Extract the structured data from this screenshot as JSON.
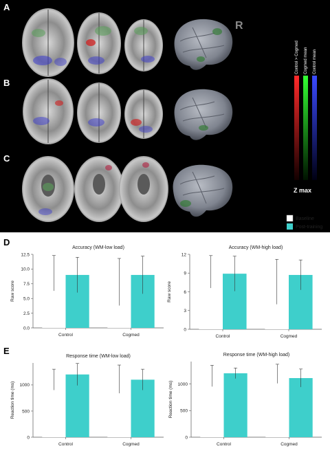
{
  "panel_labels": [
    "A",
    "B",
    "C",
    "D",
    "E"
  ],
  "brain_figure": {
    "orientation_label": "R",
    "colorbar_labels": [
      "Control > Cogmed",
      "Cogmed mean",
      "Control mean"
    ],
    "colorbar_colors": [
      "#d82020",
      "#28c828",
      "#2a3adc"
    ],
    "zmax_label": "Z max"
  },
  "legend": {
    "baseline": "Baseline",
    "post_training": "Post-training",
    "colors": {
      "baseline": "#ffffff",
      "post_training": "#3ecfcb"
    }
  },
  "chart_data": [
    {
      "type": "bar",
      "title": "Accuracy (WM-low load)",
      "ylabel": "Raw score",
      "categories": [
        "Control",
        "Cogmed"
      ],
      "ylim": [
        0,
        12.5
      ],
      "yticks": [
        "0.0",
        "2.5",
        "5.0",
        "7.5",
        "10.0",
        "12.5"
      ],
      "ytick_values": [
        0,
        2.5,
        5,
        7.5,
        10,
        12.5
      ],
      "series": [
        {
          "name": "Baseline",
          "values": [
            9.3,
            7.8
          ],
          "error": [
            3.0,
            4.0
          ]
        },
        {
          "name": "Post-training",
          "values": [
            9.0,
            9.0
          ],
          "error": [
            3.0,
            3.2
          ]
        }
      ]
    },
    {
      "type": "bar",
      "title": "Accuracy (WM-high load)",
      "ylabel": "Raw score",
      "categories": [
        "Control",
        "Cogmed"
      ],
      "ylim": [
        0,
        12
      ],
      "yticks": [
        "0",
        "3",
        "6",
        "9",
        "12"
      ],
      "ytick_values": [
        0,
        3,
        6,
        9,
        12
      ],
      "series": [
        {
          "name": "Baseline",
          "values": [
            9.2,
            7.6
          ],
          "error": [
            2.6,
            3.6
          ]
        },
        {
          "name": "Post-training",
          "values": [
            8.9,
            8.7
          ],
          "error": [
            2.8,
            2.4
          ]
        }
      ]
    },
    {
      "type": "bar",
      "title": "Response time (WM-low load)",
      "ylabel": "Reaction time (ms)",
      "categories": [
        "Control",
        "Cogmed"
      ],
      "ylim": [
        0,
        1420
      ],
      "yticks": [
        "0",
        "500",
        "1000"
      ],
      "ytick_values": [
        0,
        500,
        1000
      ],
      "series": [
        {
          "name": "Baseline",
          "values": [
            1100,
            1110
          ],
          "error": [
            200,
            270
          ]
        },
        {
          "name": "Post-training",
          "values": [
            1200,
            1100
          ],
          "error": [
            210,
            200
          ]
        }
      ]
    },
    {
      "type": "bar",
      "title": "Response time (WM-high load)",
      "ylabel": "Reaction time (ms)",
      "categories": [
        "Control",
        "Cogmed"
      ],
      "ylim": [
        0,
        1420
      ],
      "yticks": [
        "0",
        "500",
        "1000"
      ],
      "ytick_values": [
        0,
        500,
        1000
      ],
      "series": [
        {
          "name": "Baseline",
          "values": [
            1150,
            1190
          ],
          "error": [
            200,
            180
          ]
        },
        {
          "name": "Post-training",
          "values": [
            1200,
            1110
          ],
          "error": [
            100,
            170
          ]
        }
      ]
    }
  ]
}
